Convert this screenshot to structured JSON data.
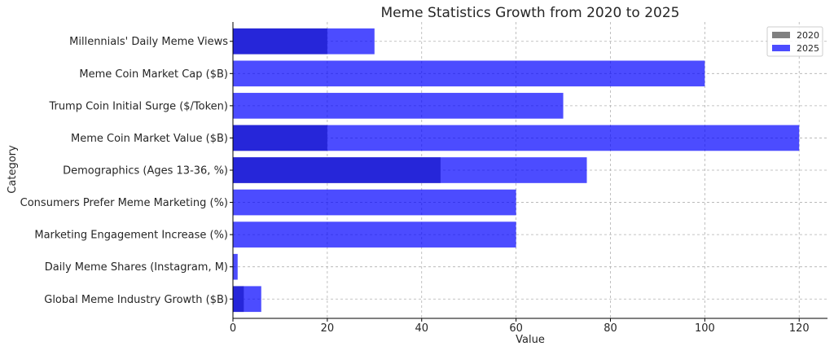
{
  "chart_data": {
    "type": "bar",
    "orientation": "horizontal",
    "title": "Meme Statistics Growth from 2020 to 2025",
    "xlabel": "Value",
    "ylabel": "Category",
    "xlim": [
      0,
      126
    ],
    "x_ticks": [
      "0",
      "20",
      "40",
      "60",
      "80",
      "100",
      "120"
    ],
    "grid": true,
    "legend_position": "top-right",
    "categories": [
      "Global Meme Industry Growth ($B)",
      "Daily Meme Shares (Instagram, M)",
      "Marketing Engagement Increase (%)",
      "Consumers Prefer Meme Marketing (%)",
      "Demographics (Ages 13-36, %)",
      "Meme Coin Market Value ($B)",
      "Trump Coin Initial Surge ($/Token)",
      "Meme Coin Market Cap ($B)",
      "Millennials' Daily Meme Views"
    ],
    "series": [
      {
        "name": "2020",
        "color": "#808080",
        "values": [
          2.3,
          0,
          0,
          0,
          44,
          20,
          0,
          0,
          20
        ]
      },
      {
        "name": "2025",
        "color": "#0000ff",
        "opacity": 0.7,
        "values": [
          6,
          1,
          60,
          60,
          75,
          120,
          70,
          100,
          30
        ]
      }
    ]
  }
}
